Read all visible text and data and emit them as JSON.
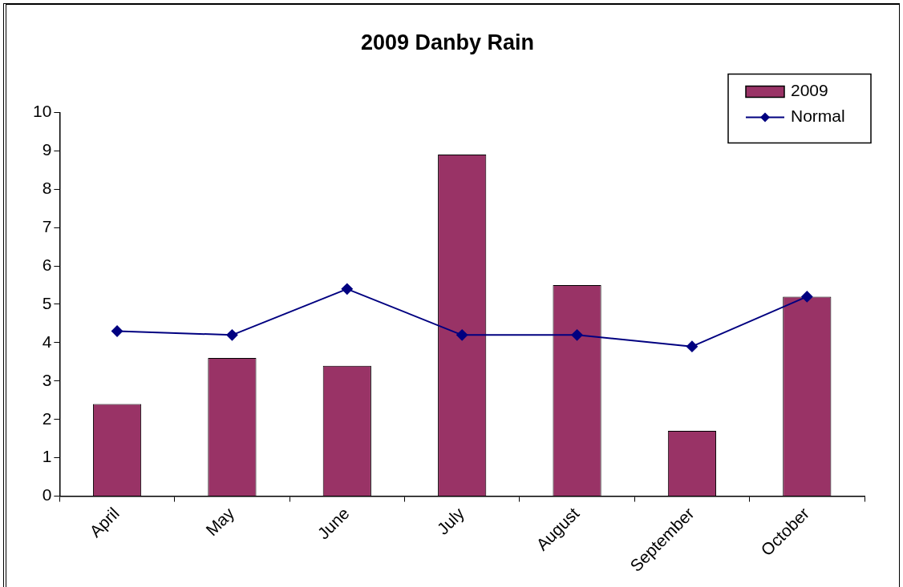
{
  "chart_data": {
    "type": "bar",
    "title": "2009 Danby Rain",
    "categories": [
      "April",
      "May",
      "June",
      "July",
      "August",
      "September",
      "October"
    ],
    "series": [
      {
        "name": "2009",
        "color": "#993366",
        "values": [
          2.4,
          3.6,
          3.4,
          8.9,
          5.5,
          1.7,
          5.2
        ]
      },
      {
        "name": "Normal",
        "type": "line",
        "color": "#000080",
        "values": [
          4.3,
          4.2,
          5.4,
          4.2,
          4.2,
          3.9,
          5.2
        ]
      }
    ],
    "ylim": [
      0,
      10
    ],
    "yticks": [
      0,
      1,
      2,
      3,
      4,
      5,
      6,
      7,
      8,
      9,
      10
    ],
    "legend": "top right",
    "marker": "diamond"
  }
}
